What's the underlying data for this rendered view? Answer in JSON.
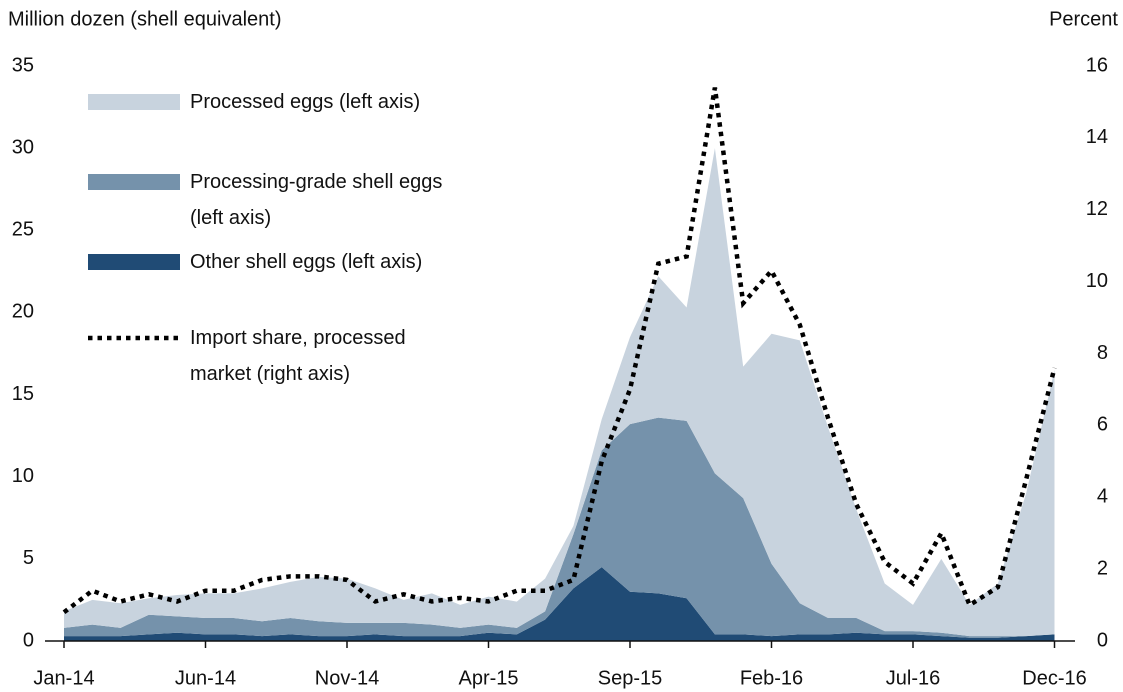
{
  "chart_data": {
    "type": "stacked_area",
    "y_label": "Million dozen (shell equivalent)",
    "y2_label": "Percent",
    "categories": [
      "Jan-14",
      null,
      null,
      null,
      null,
      "Jun-14",
      null,
      null,
      null,
      null,
      "Nov-14",
      null,
      null,
      null,
      null,
      "Apr-15",
      null,
      null,
      null,
      null,
      "Sep-15",
      null,
      null,
      null,
      null,
      "Feb-16",
      null,
      null,
      null,
      null,
      "Jul-16",
      null,
      null,
      null,
      null,
      "Dec-16"
    ],
    "ylim": [
      0,
      35
    ],
    "yticks": [
      0,
      5,
      10,
      15,
      20,
      25,
      30,
      35
    ],
    "y2lim": [
      0,
      16
    ],
    "y2ticks": [
      0,
      2,
      4,
      6,
      8,
      10,
      12,
      14,
      16
    ],
    "series": [
      {
        "name": "Other shell eggs (left axis)",
        "color": "#204b75",
        "values": [
          0.3,
          0.3,
          0.3,
          0.4,
          0.5,
          0.4,
          0.4,
          0.3,
          0.4,
          0.3,
          0.3,
          0.4,
          0.3,
          0.3,
          0.3,
          0.5,
          0.4,
          1.3,
          3.2,
          4.5,
          3.0,
          2.9,
          2.6,
          0.4,
          0.4,
          0.3,
          0.4,
          0.4,
          0.5,
          0.4,
          0.4,
          0.3,
          0.2,
          0.2,
          0.3,
          0.4
        ]
      },
      {
        "name": "Processing-grade shell eggs (left axis)",
        "color": "#7592ab",
        "values": [
          0.5,
          0.7,
          0.5,
          1.2,
          1.0,
          1.0,
          1.0,
          0.9,
          1.0,
          0.9,
          0.8,
          0.7,
          0.8,
          0.7,
          0.5,
          0.5,
          0.4,
          0.5,
          3.3,
          7.1,
          10.2,
          10.7,
          10.8,
          9.8,
          8.3,
          4.4,
          1.9,
          1.0,
          0.9,
          0.2,
          0.2,
          0.2,
          0.1,
          0.1,
          0.0,
          0.0
        ]
      },
      {
        "name": "Processed eggs (left axis)",
        "color": "#c8d3de",
        "values": [
          1.0,
          1.5,
          1.5,
          1.0,
          1.3,
          1.5,
          1.5,
          2.0,
          2.2,
          2.7,
          2.7,
          2.1,
          1.4,
          1.9,
          1.4,
          1.7,
          1.6,
          2.0,
          0.5,
          1.9,
          5.3,
          8.6,
          6.9,
          19.8,
          8.0,
          14.0,
          16.0,
          11.6,
          6.6,
          2.9,
          1.6,
          4.5,
          1.9,
          3.2,
          8.7,
          16.1
        ]
      },
      {
        "name": "Import share, processed market (right axis)",
        "color": "#000000",
        "axis": "y2",
        "style": "dotted",
        "values": [
          0.8,
          1.4,
          1.1,
          1.3,
          1.1,
          1.4,
          1.4,
          1.7,
          1.8,
          1.8,
          1.7,
          1.1,
          1.3,
          1.1,
          1.2,
          1.1,
          1.4,
          1.4,
          1.7,
          5.0,
          7.0,
          10.5,
          10.7,
          15.4,
          9.4,
          10.3,
          8.8,
          6.2,
          3.8,
          2.2,
          1.6,
          3.0,
          1.0,
          1.5,
          4.5,
          7.6
        ]
      }
    ]
  }
}
